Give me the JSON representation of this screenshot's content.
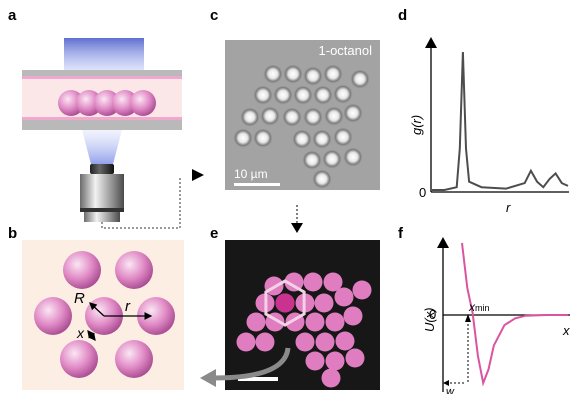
{
  "panels": {
    "a": {
      "label": "a"
    },
    "b": {
      "label": "b",
      "R": "R",
      "r": "r",
      "x": "x"
    },
    "c": {
      "label": "c",
      "solvent": "1-octanol",
      "scalebar": "10 µm"
    },
    "d": {
      "label": "d",
      "ylabel": "g(r)",
      "xlabel": "r",
      "zero": "0"
    },
    "e": {
      "label": "e"
    },
    "f": {
      "label": "f",
      "ylabel": "U(x)",
      "xlabel": "x",
      "zero": "0",
      "xmin": "x",
      "xmin_sub": "min",
      "w": "w"
    }
  },
  "colors": {
    "particle": "#e07cc0",
    "particle_dark": "#b04a93",
    "curve_g": "#4d4d4d",
    "curve_u": "#d9559f",
    "panel_b_bg": "#fdeee4",
    "panel_e_bg": "#171717",
    "hexagon": "#f2d3e6"
  },
  "chart_data": [
    {
      "panel": "d",
      "type": "line",
      "xlabel": "r",
      "ylabel": "g(r)",
      "series": [
        {
          "x": [
            0,
            0.2,
            0.4,
            0.45,
            0.5,
            0.55,
            0.6,
            0.8,
            1.2,
            1.5,
            1.6,
            1.7,
            1.8,
            1.9,
            2.0,
            2.1,
            2.2
          ],
          "values": [
            0,
            0,
            0.02,
            0.3,
            1.0,
            0.3,
            0.06,
            0.02,
            0.01,
            0.05,
            0.14,
            0.06,
            0.02,
            0.08,
            0.12,
            0.05,
            0.03
          ]
        }
      ]
    },
    {
      "panel": "f",
      "type": "line",
      "xlabel": "x",
      "ylabel": "U(x)",
      "series": [
        {
          "x": [
            0.0,
            0.05,
            0.1,
            0.15,
            0.2,
            0.25,
            0.3,
            0.4,
            0.5,
            0.6,
            0.8,
            1.0
          ],
          "values": [
            3.2,
            1.2,
            0.1,
            -0.6,
            -1.0,
            -0.8,
            -0.45,
            -0.15,
            -0.05,
            -0.01,
            0,
            0
          ]
        }
      ]
    }
  ]
}
